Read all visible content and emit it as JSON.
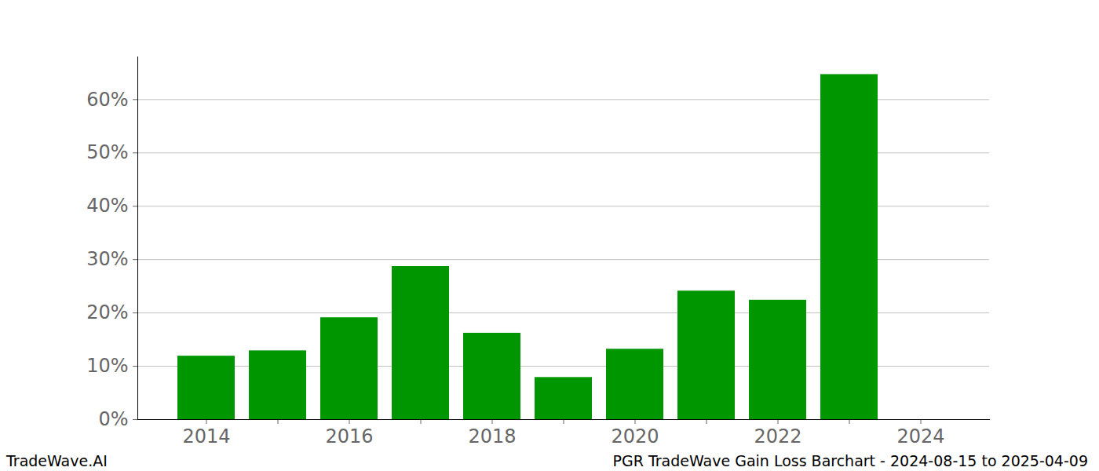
{
  "chart_data": {
    "type": "bar",
    "categories": [
      "2014",
      null,
      "2016",
      null,
      "2018",
      null,
      "2020",
      null,
      "2022",
      null,
      "2024"
    ],
    "values": [
      11.9,
      12.9,
      19.1,
      28.7,
      16.2,
      7.9,
      13.2,
      24.1,
      22.4,
      64.7,
      null
    ],
    "color": "#009600",
    "ylim": [
      0,
      68
    ],
    "yticks": [
      {
        "value": 0,
        "label": "0%"
      },
      {
        "value": 10,
        "label": "10%"
      },
      {
        "value": 20,
        "label": "20%"
      },
      {
        "value": 30,
        "label": "30%"
      },
      {
        "value": 40,
        "label": "40%"
      },
      {
        "value": 50,
        "label": "50%"
      },
      {
        "value": 60,
        "label": "60%"
      }
    ],
    "grid": true,
    "source": "TradeWave.AI",
    "caption": "PGR TradeWave Gain Loss Barchart - 2024-08-15 to 2025-04-09"
  }
}
